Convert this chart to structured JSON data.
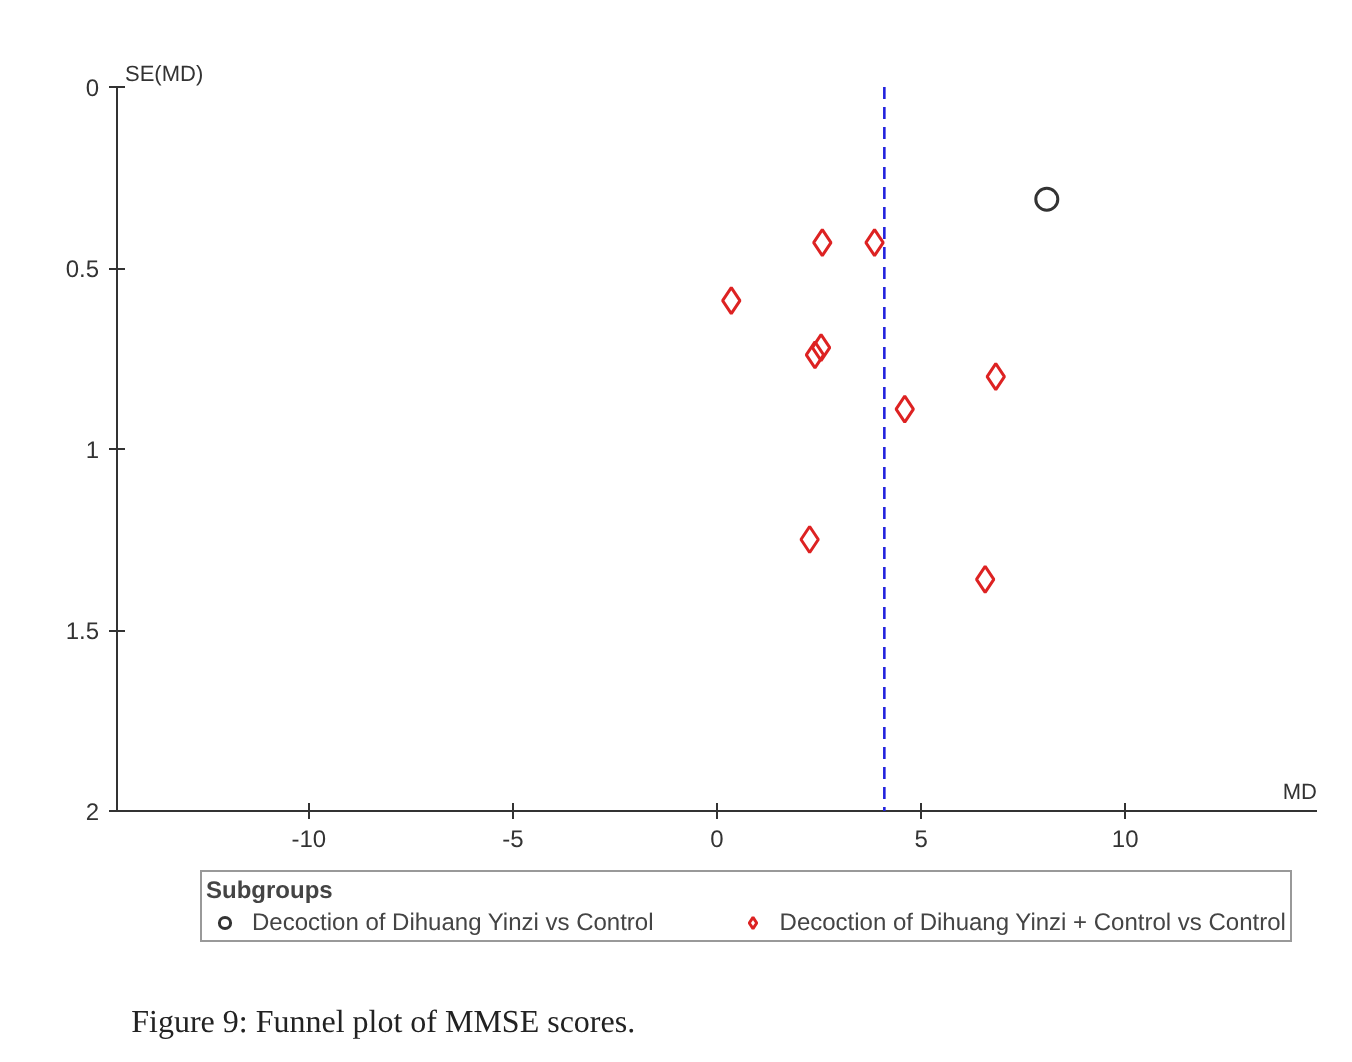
{
  "chart_data": {
    "type": "scatter",
    "xlabel": "MD",
    "ylabel": "SE(MD)",
    "legend_title": "Subgroups",
    "legend": "bottom",
    "grid": false,
    "xlim": [
      -14.7,
      14.7
    ],
    "ylim": [
      2,
      0
    ],
    "xticks": [
      -10,
      -5,
      0,
      5,
      10
    ],
    "yticks": [
      0,
      0.5,
      1,
      1.5,
      2
    ],
    "series": [
      {
        "name": "Decoction of Dihuang Yinzi vs Control",
        "color": "#333333",
        "marker": "circle",
        "x": [
          8.08
        ],
        "values": [
          0.31
        ]
      },
      {
        "name": "Decoction of Dihuang Yinzi + Control vs Control",
        "color": "#dd2222",
        "marker": "diamond",
        "x": [
          2.58,
          3.86,
          0.35,
          2.55,
          2.4,
          6.83,
          4.6,
          2.27,
          6.57
        ],
        "values": [
          0.43,
          0.43,
          0.59,
          0.72,
          0.74,
          0.8,
          0.89,
          1.25,
          1.36
        ]
      }
    ],
    "ref_lines": [
      {
        "axis": "x",
        "value": 4.1,
        "color": "#2222dd",
        "line_style": "dashed"
      }
    ],
    "annotations": [
      "Figure 9: Funnel plot of MMSE scores."
    ]
  }
}
